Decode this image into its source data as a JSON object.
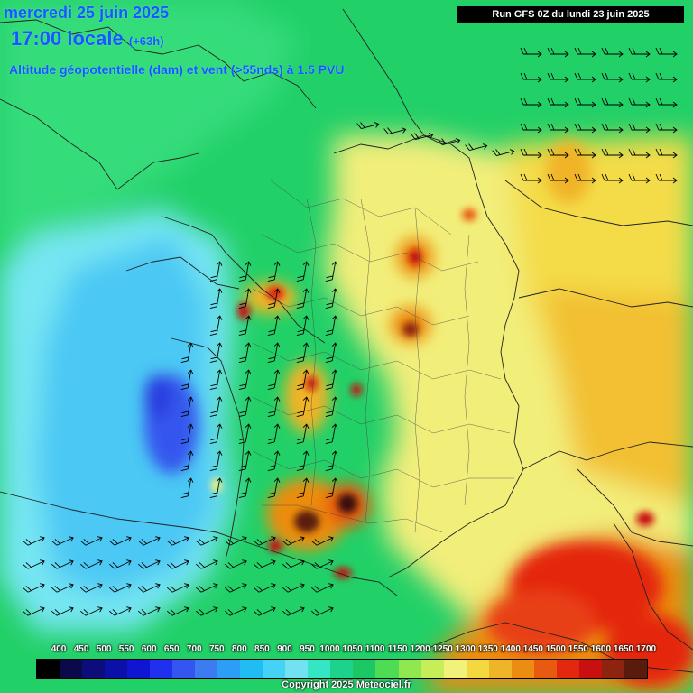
{
  "header": {
    "date_line": "mercredi 25 juin 2025",
    "time_line": "17:00 locale",
    "lead_time": "(+63h)",
    "parameter_line": "Altitude géopotentielle (dam) et vent (>55nds) à 1.5 PVU",
    "run_label": "Run GFS 0Z du lundi 23 juin 2025"
  },
  "legend": {
    "labels": [
      "400",
      "450",
      "500",
      "550",
      "600",
      "650",
      "700",
      "750",
      "800",
      "850",
      "900",
      "950",
      "1000",
      "1050",
      "1100",
      "1150",
      "1200",
      "1250",
      "1300",
      "1350",
      "1400",
      "1450",
      "1500",
      "1550",
      "1600",
      "1650",
      "1700"
    ],
    "colors": [
      "#000000",
      "#0a0a4a",
      "#0c0c7a",
      "#0a10a8",
      "#0f15d0",
      "#2030ee",
      "#3455f0",
      "#3c7cf0",
      "#2c9ef5",
      "#20bdf5",
      "#46d2f6",
      "#72e2f2",
      "#34e6c4",
      "#1cd28c",
      "#1cc864",
      "#4ddc54",
      "#90e850",
      "#c6ee58",
      "#f2f27a",
      "#f4d840",
      "#f0b428",
      "#ec8c10",
      "#e85a10",
      "#e42810",
      "#c81010",
      "#8c2410",
      "#5a1a0c"
    ]
  },
  "copyright": "Copyright 2025 Meteociel.fr",
  "colors": {
    "title": "#1a56ff",
    "run_bg": "#000000",
    "sea_blue": "#3c7cf0",
    "hot": "#e42810"
  }
}
